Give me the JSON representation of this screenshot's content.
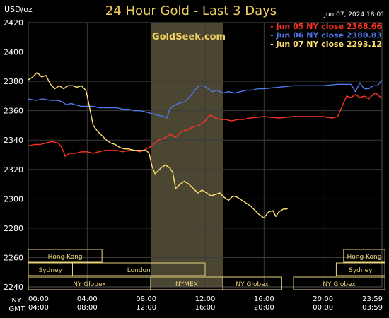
{
  "header": {
    "unit": "USD/oz",
    "title": "24 Hour Gold - Last 3 Days",
    "timestamp": "Jun 07, 2024  18:01"
  },
  "watermark": "GoldSeek.com",
  "colors": {
    "background": "#000000",
    "grid": "#3a3a3a",
    "axis_text": "#ffffff",
    "highlight": "#4a4632",
    "session_box": "#e8d27a",
    "watermark": "#f0d060"
  },
  "chart_data": {
    "type": "line",
    "title": "24 Hour Gold - Last 3 Days",
    "ylabel": "USD/oz",
    "ylim": [
      2240,
      2420
    ],
    "xlim": [
      0,
      24
    ],
    "grid": true,
    "legend_position": "top-right",
    "y_ticks": [
      2240,
      2260,
      2280,
      2300,
      2320,
      2340,
      2360,
      2380,
      2400,
      2420
    ],
    "x_ticks": [
      {
        "x": 0,
        "ny": "00:00",
        "gmt": "04:00"
      },
      {
        "x": 4,
        "ny": "04:00",
        "gmt": "08:00"
      },
      {
        "x": 8,
        "ny": "08:00",
        "gmt": "12:00"
      },
      {
        "x": 12,
        "ny": "12:00",
        "gmt": "16:00"
      },
      {
        "x": 16,
        "ny": "16:00",
        "gmt": "20:00"
      },
      {
        "x": 20,
        "ny": "20:00",
        "gmt": "00:00"
      },
      {
        "x": 24,
        "ny": "23:59",
        "gmt": "03:59"
      }
    ],
    "x_axis_names": {
      "ny": "NY",
      "gmt": "GMT"
    },
    "nymex_window": [
      8.3,
      13.2
    ],
    "series": [
      {
        "name": "Jun 05 NY close 2368.66",
        "color": "#ff3322",
        "points": [
          [
            0,
            2336
          ],
          [
            0.4,
            2337
          ],
          [
            0.8,
            2337
          ],
          [
            1.2,
            2338
          ],
          [
            1.6,
            2339
          ],
          [
            2.0,
            2338
          ],
          [
            2.2,
            2336
          ],
          [
            2.4,
            2332
          ],
          [
            2.5,
            2329
          ],
          [
            2.8,
            2331
          ],
          [
            3.2,
            2331
          ],
          [
            3.6,
            2332
          ],
          [
            4.0,
            2332
          ],
          [
            4.4,
            2331
          ],
          [
            4.8,
            2332
          ],
          [
            5.2,
            2333
          ],
          [
            5.6,
            2333
          ],
          [
            6.0,
            2333
          ],
          [
            6.4,
            2332
          ],
          [
            6.8,
            2333
          ],
          [
            7.2,
            2333
          ],
          [
            7.6,
            2332
          ],
          [
            8.0,
            2334
          ],
          [
            8.4,
            2336
          ],
          [
            8.8,
            2340
          ],
          [
            9.2,
            2341
          ],
          [
            9.6,
            2344
          ],
          [
            10.0,
            2342
          ],
          [
            10.4,
            2346
          ],
          [
            10.8,
            2347
          ],
          [
            11.2,
            2349
          ],
          [
            11.6,
            2350
          ],
          [
            12.0,
            2353
          ],
          [
            12.2,
            2356
          ],
          [
            12.4,
            2357
          ],
          [
            12.7,
            2355
          ],
          [
            13.0,
            2354
          ],
          [
            13.4,
            2354
          ],
          [
            13.8,
            2353
          ],
          [
            14.2,
            2354
          ],
          [
            14.6,
            2354
          ],
          [
            15.0,
            2355
          ],
          [
            16.0,
            2356
          ],
          [
            17.0,
            2355
          ],
          [
            18.0,
            2356
          ],
          [
            19.0,
            2356
          ],
          [
            20.0,
            2356
          ],
          [
            20.6,
            2355
          ],
          [
            21.0,
            2356
          ],
          [
            21.3,
            2363
          ],
          [
            21.6,
            2370
          ],
          [
            21.9,
            2369
          ],
          [
            22.2,
            2371
          ],
          [
            22.5,
            2369
          ],
          [
            22.8,
            2370
          ],
          [
            23.1,
            2368
          ],
          [
            23.4,
            2371
          ],
          [
            23.6,
            2372
          ],
          [
            23.8,
            2370
          ],
          [
            24.0,
            2368.66
          ]
        ]
      },
      {
        "name": "Jun 06 NY close 2380.83",
        "color": "#4f78e8",
        "points": [
          [
            0,
            2368
          ],
          [
            0.5,
            2367
          ],
          [
            1.0,
            2368
          ],
          [
            1.5,
            2367
          ],
          [
            2.0,
            2367
          ],
          [
            2.3,
            2366
          ],
          [
            2.6,
            2364
          ],
          [
            2.9,
            2365
          ],
          [
            3.2,
            2364
          ],
          [
            3.6,
            2363
          ],
          [
            4.0,
            2363
          ],
          [
            4.4,
            2363
          ],
          [
            4.8,
            2362
          ],
          [
            5.2,
            2362
          ],
          [
            5.6,
            2362
          ],
          [
            6.0,
            2362
          ],
          [
            6.4,
            2361
          ],
          [
            6.8,
            2361
          ],
          [
            7.2,
            2360
          ],
          [
            7.6,
            2360
          ],
          [
            8.0,
            2359
          ],
          [
            8.4,
            2358
          ],
          [
            8.8,
            2357
          ],
          [
            9.2,
            2356
          ],
          [
            9.4,
            2355
          ],
          [
            9.6,
            2361
          ],
          [
            9.8,
            2363
          ],
          [
            10.2,
            2365
          ],
          [
            10.6,
            2366
          ],
          [
            11.0,
            2370
          ],
          [
            11.3,
            2374
          ],
          [
            11.6,
            2377
          ],
          [
            11.9,
            2377
          ],
          [
            12.2,
            2375
          ],
          [
            12.5,
            2373
          ],
          [
            12.8,
            2374
          ],
          [
            13.2,
            2372
          ],
          [
            13.6,
            2373
          ],
          [
            14.0,
            2372
          ],
          [
            14.4,
            2373
          ],
          [
            14.8,
            2374
          ],
          [
            15.2,
            2374
          ],
          [
            15.6,
            2375
          ],
          [
            16.0,
            2375
          ],
          [
            17.0,
            2376
          ],
          [
            18.0,
            2377
          ],
          [
            19.0,
            2377
          ],
          [
            20.0,
            2377
          ],
          [
            21.0,
            2378
          ],
          [
            21.6,
            2378
          ],
          [
            21.9,
            2378
          ],
          [
            22.2,
            2373
          ],
          [
            22.5,
            2379
          ],
          [
            22.8,
            2375
          ],
          [
            23.1,
            2375
          ],
          [
            23.4,
            2377
          ],
          [
            23.7,
            2377
          ],
          [
            24.0,
            2380.83
          ]
        ]
      },
      {
        "name": "Jun 07 NY close 2293.12",
        "color": "#ffe070",
        "points": [
          [
            0,
            2381
          ],
          [
            0.3,
            2383
          ],
          [
            0.6,
            2386
          ],
          [
            0.9,
            2383
          ],
          [
            1.2,
            2384
          ],
          [
            1.5,
            2378
          ],
          [
            1.8,
            2375
          ],
          [
            2.1,
            2377
          ],
          [
            2.4,
            2375
          ],
          [
            2.7,
            2377
          ],
          [
            3.0,
            2377
          ],
          [
            3.3,
            2376
          ],
          [
            3.6,
            2377
          ],
          [
            3.9,
            2374
          ],
          [
            4.0,
            2370
          ],
          [
            4.2,
            2360
          ],
          [
            4.4,
            2350
          ],
          [
            4.7,
            2346
          ],
          [
            5.0,
            2343
          ],
          [
            5.3,
            2340
          ],
          [
            5.6,
            2338
          ],
          [
            5.9,
            2337
          ],
          [
            6.2,
            2335
          ],
          [
            6.5,
            2334
          ],
          [
            6.8,
            2334
          ],
          [
            7.2,
            2333
          ],
          [
            7.6,
            2333
          ],
          [
            8.0,
            2333
          ],
          [
            8.2,
            2331
          ],
          [
            8.4,
            2322
          ],
          [
            8.6,
            2317
          ],
          [
            8.8,
            2319
          ],
          [
            9.0,
            2321
          ],
          [
            9.3,
            2323
          ],
          [
            9.6,
            2321
          ],
          [
            9.8,
            2318
          ],
          [
            10.0,
            2307
          ],
          [
            10.3,
            2310
          ],
          [
            10.6,
            2312
          ],
          [
            10.9,
            2310
          ],
          [
            11.2,
            2307
          ],
          [
            11.5,
            2304
          ],
          [
            11.8,
            2306
          ],
          [
            12.1,
            2304
          ],
          [
            12.4,
            2302
          ],
          [
            12.7,
            2303
          ],
          [
            13.0,
            2304
          ],
          [
            13.3,
            2301
          ],
          [
            13.6,
            2299
          ],
          [
            13.9,
            2302
          ],
          [
            14.2,
            2301
          ],
          [
            14.5,
            2299
          ],
          [
            14.8,
            2297
          ],
          [
            15.1,
            2295
          ],
          [
            15.4,
            2292
          ],
          [
            15.7,
            2289
          ],
          [
            16.0,
            2287
          ],
          [
            16.3,
            2291
          ],
          [
            16.6,
            2292
          ],
          [
            16.8,
            2288
          ],
          [
            17.0,
            2291
          ],
          [
            17.3,
            2293
          ],
          [
            17.6,
            2293.12
          ]
        ]
      }
    ]
  },
  "sessions": [
    {
      "label": "Hong Kong",
      "row": 0,
      "start": 0,
      "end": 5
    },
    {
      "label": "Hong Kong",
      "row": 0,
      "start": 21.4,
      "end": 24.2
    },
    {
      "label": "Sydney",
      "row": 1,
      "start": 0,
      "end": 3
    },
    {
      "label": "London",
      "row": 1,
      "start": 3,
      "end": 12
    },
    {
      "label": "Sydney",
      "row": 1,
      "start": 20.9,
      "end": 24.2
    },
    {
      "label": "NY Globex",
      "row": 2,
      "start": 0,
      "end": 8.3
    },
    {
      "label": "NYMEX",
      "row": 2,
      "start": 8.3,
      "end": 13.2
    },
    {
      "label": "NY Globex",
      "row": 2,
      "start": 13.2,
      "end": 17.2
    },
    {
      "label": "NY Globex",
      "row": 2,
      "start": 18.0,
      "end": 24.2
    }
  ]
}
